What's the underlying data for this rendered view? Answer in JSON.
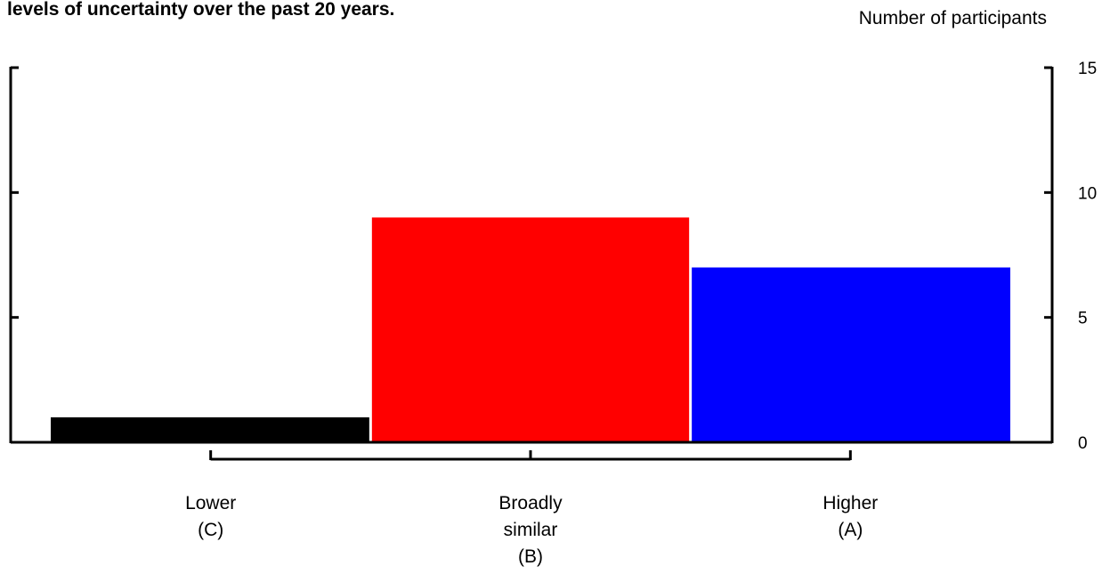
{
  "chart_data": {
    "type": "bar",
    "title": "levels of uncertainty over the past 20 years.",
    "ylabel": "Number of participants",
    "categories": [
      [
        "Lower",
        "(C)"
      ],
      [
        "Broadly",
        "similar",
        "(B)"
      ],
      [
        "Higher",
        "(A)"
      ]
    ],
    "values": [
      1,
      9,
      7
    ],
    "colors": [
      "#000000",
      "#ff0000",
      "#0000ff"
    ],
    "ylim": [
      0,
      15
    ],
    "yticks": [
      0,
      5,
      10,
      15
    ],
    "grid": false
  }
}
